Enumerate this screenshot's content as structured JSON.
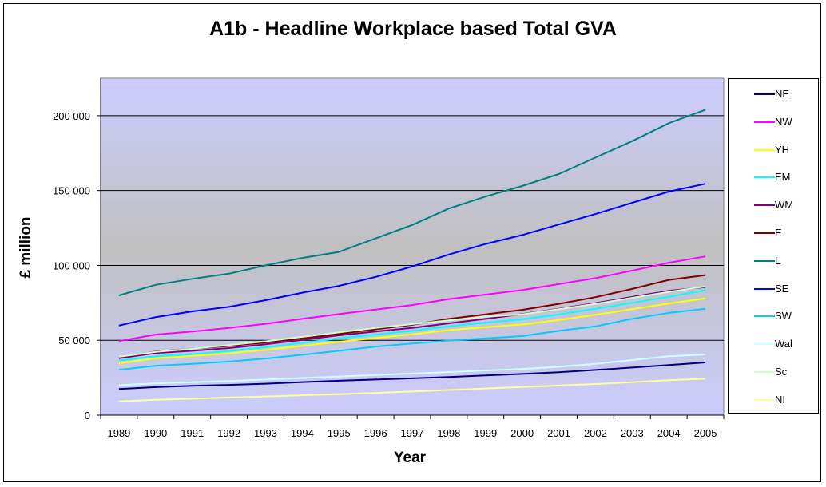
{
  "chart_data": {
    "type": "line",
    "title": "A1b - Headline Workplace based Total GVA",
    "xlabel": "Year",
    "ylabel": "£ million",
    "x": [
      "1989",
      "1990",
      "1991",
      "1992",
      "1993",
      "1994",
      "1995",
      "1996",
      "1997",
      "1998",
      "1999",
      "2000",
      "2001",
      "2002",
      "2003",
      "2004",
      "2005"
    ],
    "y_ticks": [
      "0",
      "50 000",
      "100 000",
      "150 000",
      "200 000"
    ],
    "ylim": [
      0,
      225000
    ],
    "grid": "horizontal major gridlines",
    "legend_position": "right",
    "series": [
      {
        "name": "NE",
        "color": "#000080",
        "values": [
          17500,
          18700,
          19600,
          20200,
          21000,
          22100,
          23000,
          23800,
          24600,
          25500,
          26500,
          27500,
          28700,
          30200,
          31800,
          33500,
          35200
        ]
      },
      {
        "name": "NW",
        "color": "#ff00ff",
        "values": [
          49500,
          53800,
          55800,
          58300,
          61000,
          64300,
          67500,
          70500,
          73500,
          77500,
          80500,
          83500,
          87500,
          91500,
          96500,
          101800,
          106000
        ]
      },
      {
        "name": "YH",
        "color": "#ffff00",
        "values": [
          34500,
          38000,
          39500,
          41300,
          43500,
          46300,
          49000,
          51500,
          54000,
          56800,
          58800,
          60500,
          63500,
          67000,
          70800,
          74500,
          78000
        ]
      },
      {
        "name": "EM",
        "color": "#00ffff",
        "values": [
          36500,
          39300,
          40800,
          42800,
          45300,
          48300,
          51300,
          53800,
          56300,
          59300,
          61800,
          64000,
          67300,
          71000,
          75000,
          79000,
          83500
        ]
      },
      {
        "name": "WM",
        "color": "#800080",
        "values": [
          38000,
          41500,
          43000,
          44800,
          47300,
          50300,
          53300,
          55800,
          58300,
          61300,
          64300,
          67500,
          71000,
          74800,
          79000,
          83000,
          85500
        ]
      },
      {
        "name": "E",
        "color": "#800000",
        "values": [
          38500,
          42500,
          44300,
          46300,
          48500,
          51300,
          54300,
          57300,
          60300,
          64300,
          67300,
          70300,
          74300,
          78800,
          84300,
          90300,
          93500
        ]
      },
      {
        "name": "L",
        "color": "#008080",
        "values": [
          80000,
          87000,
          91000,
          94500,
          100000,
          105000,
          109000,
          118000,
          127000,
          138000,
          146000,
          153000,
          161000,
          172000,
          183000,
          195000,
          204000
        ]
      },
      {
        "name": "SE",
        "color": "#0000ff",
        "values": [
          59800,
          65500,
          69300,
          72300,
          76800,
          81800,
          86300,
          92300,
          99300,
          107300,
          114300,
          120300,
          127300,
          134300,
          141800,
          149300,
          154500
        ]
      },
      {
        "name": "SW",
        "color": "#00ccff",
        "values": [
          30300,
          33000,
          34300,
          35800,
          37800,
          40300,
          43000,
          45800,
          47800,
          49800,
          51300,
          52800,
          56300,
          59300,
          64300,
          68300,
          71000
        ]
      },
      {
        "name": "Wal",
        "color": "#ccffff",
        "values": [
          20000,
          21300,
          22000,
          22800,
          23800,
          24800,
          25800,
          26800,
          27800,
          28800,
          29800,
          30800,
          32300,
          34300,
          36800,
          39300,
          40500
        ]
      },
      {
        "name": "Sc",
        "color": "#ccffcc",
        "values": [
          39000,
          42300,
          44300,
          46800,
          49300,
          52300,
          55300,
          58300,
          60800,
          63300,
          65800,
          67300,
          70800,
          74300,
          78300,
          82300,
          86000
        ]
      },
      {
        "name": "NI",
        "color": "#ffff99",
        "values": [
          9200,
          10300,
          11000,
          11800,
          12500,
          13300,
          14000,
          14900,
          15800,
          16800,
          17800,
          18800,
          19800,
          20800,
          22000,
          23300,
          24300
        ]
      }
    ]
  }
}
